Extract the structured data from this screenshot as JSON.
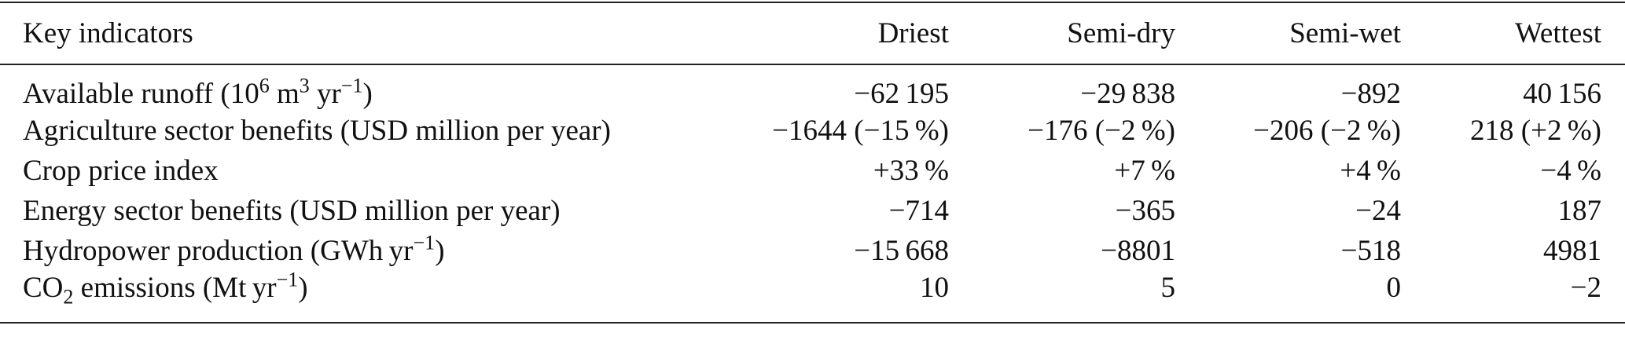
{
  "table": {
    "header": [
      "Key indicators",
      "Driest",
      "Semi-dry",
      "Semi-wet",
      "Wettest"
    ],
    "rows": [
      {
        "label": [
          "Available runoff (10",
          "6",
          " m",
          "3",
          " yr",
          "−1",
          ")"
        ],
        "values": [
          "−62 195",
          "−29 838",
          "−892",
          "40 156"
        ]
      },
      {
        "label": [
          "Agriculture sector benefits (USD million per year)"
        ],
        "values": [
          "−1644 (−15 %)",
          "−176 (−2 %)",
          "−206 (−2 %)",
          "218 (+2 %)"
        ]
      },
      {
        "label": [
          "Crop price index"
        ],
        "values": [
          "+33 %",
          "+7 %",
          "+4 %",
          "−4 %"
        ]
      },
      {
        "label": [
          "Energy sector benefits (USD million per year)"
        ],
        "values": [
          "−714",
          "−365",
          "−24",
          "187"
        ]
      },
      {
        "label": [
          "Hydropower production (GWh yr",
          "−1",
          ")"
        ],
        "values": [
          "−15 668",
          "−8801",
          "−518",
          "4981"
        ]
      },
      {
        "label": [
          "CO",
          "2",
          " emissions (Mt yr",
          "−1",
          ")"
        ],
        "values": [
          "10",
          "5",
          "0",
          "−2"
        ]
      }
    ]
  }
}
